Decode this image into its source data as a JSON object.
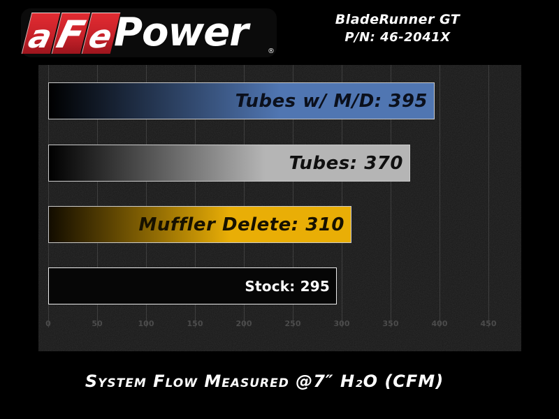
{
  "header": {
    "logo": {
      "tiles": [
        "a",
        "F",
        "e"
      ],
      "wordmark": "Power",
      "registered_mark": "®",
      "brand_red": "#c8222a"
    },
    "product": {
      "line1": "BladeRunner GT",
      "line2": "P/N: 46-2041X"
    }
  },
  "chart_data": {
    "type": "bar",
    "orientation": "horizontal",
    "title": "",
    "xlabel": "System Flow Measured @7″ H₂O (CFM)",
    "ylabel": "",
    "xlim": [
      0,
      475
    ],
    "x_ticks": [
      0,
      50,
      100,
      150,
      200,
      250,
      300,
      350,
      400,
      450
    ],
    "grid": true,
    "legend": false,
    "categories": [
      "Tubes w/ M/D",
      "Tubes",
      "Muffler Delete",
      "Stock"
    ],
    "values": [
      395,
      370,
      310,
      295
    ],
    "bars": [
      {
        "category": "Tubes w/ M/D",
        "value": 395,
        "label": "Tubes w/ M/D: 395",
        "fill": "gradient",
        "gradient_from": "#000000",
        "color": "#5076b2",
        "text_color": "#0b101c",
        "label_style": "italic"
      },
      {
        "category": "Tubes",
        "value": 370,
        "label": "Tubes: 370",
        "fill": "gradient",
        "gradient_from": "#000000",
        "color": "#b5b5b5",
        "text_color": "#101010",
        "label_style": "italic"
      },
      {
        "category": "Muffler Delete",
        "value": 310,
        "label": "Muffler Delete: 310",
        "fill": "gradient",
        "gradient_from": "#120c00",
        "color": "#e9ae06",
        "text_color": "#171100",
        "label_style": "italic"
      },
      {
        "category": "Stock",
        "value": 295,
        "label": "Stock: 295",
        "fill": "solid",
        "gradient_from": "#060606",
        "color": "#060606",
        "text_color": "#ffffff",
        "label_style": "plain"
      }
    ]
  },
  "footer": {
    "caption": "System Flow Measured @7″ H₂O (CFM)"
  }
}
